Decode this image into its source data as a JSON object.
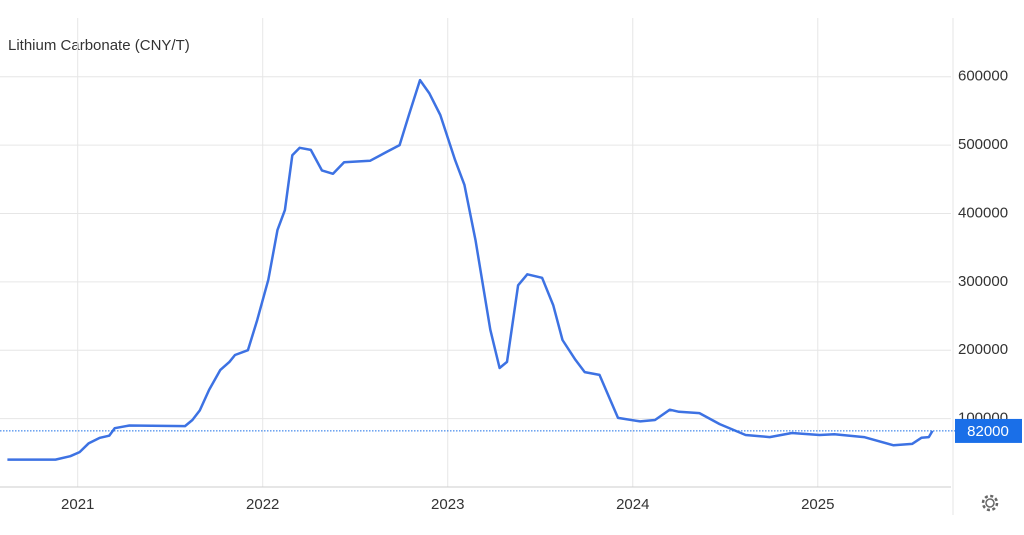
{
  "chart_data": {
    "type": "line",
    "title": "Lithium Carbonate (CNY/T)",
    "x": [
      2020.62,
      2020.88,
      2020.96,
      2021.01,
      2021.06,
      2021.12,
      2021.17,
      2021.2,
      2021.28,
      2021.58,
      2021.62,
      2021.66,
      2021.71,
      2021.77,
      2021.82,
      2021.85,
      2021.92,
      2021.97,
      2022.03,
      2022.08,
      2022.12,
      2022.16,
      2022.2,
      2022.26,
      2022.32,
      2022.38,
      2022.44,
      2022.58,
      2022.67,
      2022.74,
      2022.79,
      2022.85,
      2022.9,
      2022.96,
      2023.04,
      2023.09,
      2023.15,
      2023.23,
      2023.28,
      2023.32,
      2023.38,
      2023.43,
      2023.51,
      2023.57,
      2023.62,
      2023.69,
      2023.74,
      2023.82,
      2023.92,
      2024.04,
      2024.12,
      2024.2,
      2024.25,
      2024.36,
      2024.47,
      2024.61,
      2024.74,
      2024.86,
      2025.01,
      2025.09,
      2025.25,
      2025.41,
      2025.51,
      2025.56,
      2025.6,
      2025.62
    ],
    "values": [
      40000,
      40000,
      45000,
      51000,
      64000,
      72000,
      75000,
      86000,
      90000,
      89000,
      98000,
      112000,
      142000,
      171000,
      183000,
      193000,
      200000,
      244000,
      303000,
      376000,
      405000,
      485000,
      496000,
      493000,
      463000,
      458000,
      475000,
      477000,
      490000,
      500000,
      544000,
      595000,
      576000,
      544000,
      478000,
      442000,
      361000,
      230000,
      174000,
      183000,
      295000,
      311000,
      306000,
      266000,
      215000,
      186000,
      168000,
      164000,
      101000,
      96000,
      98000,
      113000,
      110000,
      108000,
      92000,
      76000,
      73000,
      79000,
      76000,
      77000,
      73000,
      61000,
      63000,
      72000,
      73000,
      82000
    ],
    "color": "#3d72e3",
    "xlim": [
      2020.58,
      2025.72
    ],
    "xticks": [
      2021,
      2022,
      2023,
      2024,
      2025
    ],
    "ylim": [
      0,
      680000
    ],
    "yticks": [
      100000,
      200000,
      300000,
      400000,
      500000,
      600000
    ],
    "grid": true
  }
}
